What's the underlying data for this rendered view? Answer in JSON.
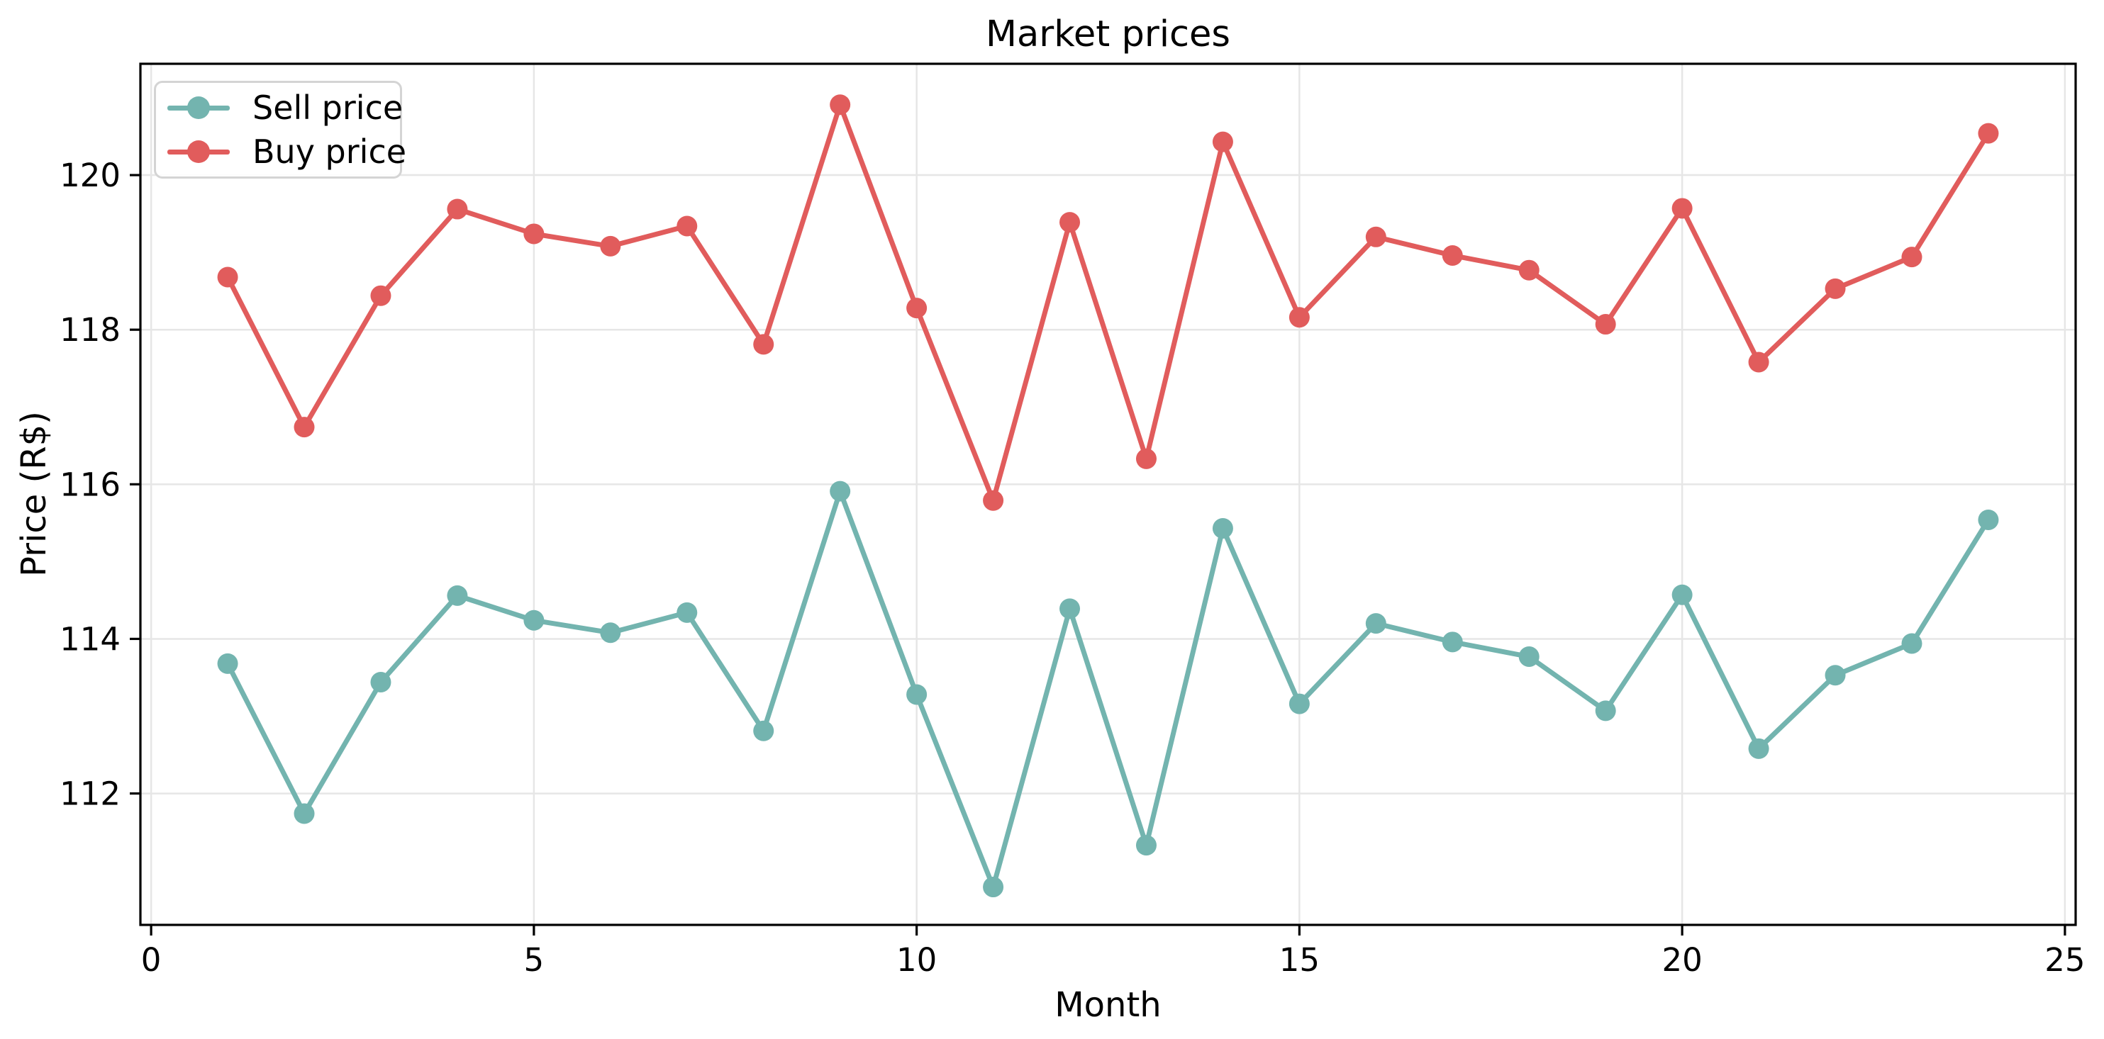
{
  "figure": {
    "title": "Market prices",
    "xlabel": "Month",
    "ylabel": "Price (R$)"
  },
  "legend": {
    "position": "upper left",
    "items": [
      {
        "label": "Sell price",
        "color": "#73b4af"
      },
      {
        "label": "Buy price",
        "color": "#e15c5c"
      }
    ]
  },
  "colors": {
    "sell_series": "#73b4af",
    "buy_series": "#e15c5c",
    "grid": "#e6e6e6",
    "spine": "#000000",
    "background": "#ffffff",
    "legend_border": "#d4d4d4"
  },
  "chart_data": {
    "type": "line",
    "title": "Market prices",
    "xlabel": "Month",
    "ylabel": "Price (R$)",
    "x": [
      1,
      2,
      3,
      4,
      5,
      6,
      7,
      8,
      9,
      10,
      11,
      12,
      13,
      14,
      15,
      16,
      17,
      18,
      19,
      20,
      21,
      22,
      23,
      24
    ],
    "series": [
      {
        "name": "Sell price",
        "color": "#73b4af",
        "values": [
          113.68,
          111.74,
          113.44,
          114.56,
          114.24,
          114.08,
          114.34,
          112.81,
          115.91,
          113.28,
          110.79,
          114.39,
          111.33,
          115.43,
          113.16,
          114.2,
          113.96,
          113.77,
          113.07,
          114.57,
          112.58,
          113.53,
          113.94,
          115.54
        ]
      },
      {
        "name": "Buy price",
        "color": "#e15c5c",
        "values": [
          118.68,
          116.74,
          118.44,
          119.56,
          119.24,
          119.08,
          119.34,
          117.81,
          120.91,
          118.28,
          115.79,
          119.39,
          116.33,
          120.43,
          118.16,
          119.2,
          118.96,
          118.77,
          118.07,
          119.57,
          117.58,
          118.53,
          118.94,
          120.54
        ]
      }
    ],
    "xlim": [
      -0.14,
      25.14
    ],
    "ylim": [
      110.3,
      121.44
    ],
    "xticks": [
      0,
      5,
      10,
      15,
      20,
      25
    ],
    "xtick_labels": [
      "0",
      "5",
      "10",
      "15",
      "20",
      "25"
    ],
    "yticks": [
      112,
      114,
      116,
      118,
      120
    ],
    "ytick_labels": [
      "112",
      "114",
      "116",
      "118",
      "120"
    ],
    "grid": true,
    "legend_position": "upper left",
    "marker": "circle",
    "marker_radius": 14.5,
    "line_width": 7
  }
}
